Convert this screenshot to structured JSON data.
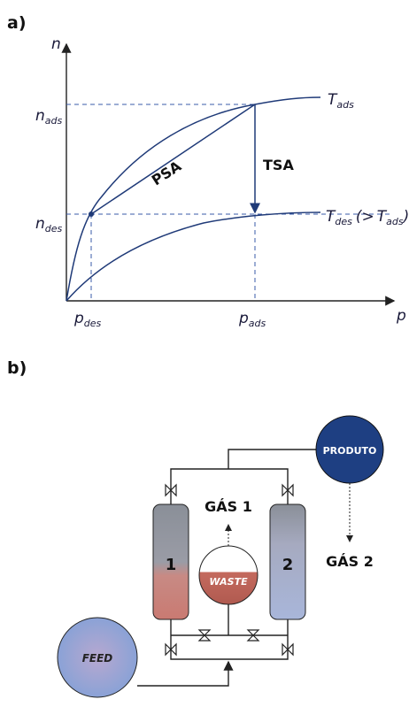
{
  "panel_a": {
    "label": "a)",
    "y_axis": "n",
    "x_axis": "p",
    "n_ads": {
      "main": "n",
      "sub": "ads"
    },
    "n_des": {
      "main": "n",
      "sub": "des"
    },
    "p_des": {
      "main": "p",
      "sub": "des"
    },
    "p_ads": {
      "main": "p",
      "sub": "ads"
    },
    "t_ads": {
      "main": "T",
      "sub": "ads"
    },
    "t_des": {
      "main": "T",
      "sub": "des",
      "open": "(>",
      "ref_main": "T",
      "ref_sub": "ads",
      "close": ")"
    },
    "psa": "PSA",
    "tsa": "TSA"
  },
  "panel_b": {
    "label": "b)",
    "produto": "PRODUTO",
    "gas1": "GÁS 1",
    "gas2": "GÁS 2",
    "waste": "WASTE",
    "feed": "FEED",
    "column1": "1",
    "column2": "2"
  }
}
